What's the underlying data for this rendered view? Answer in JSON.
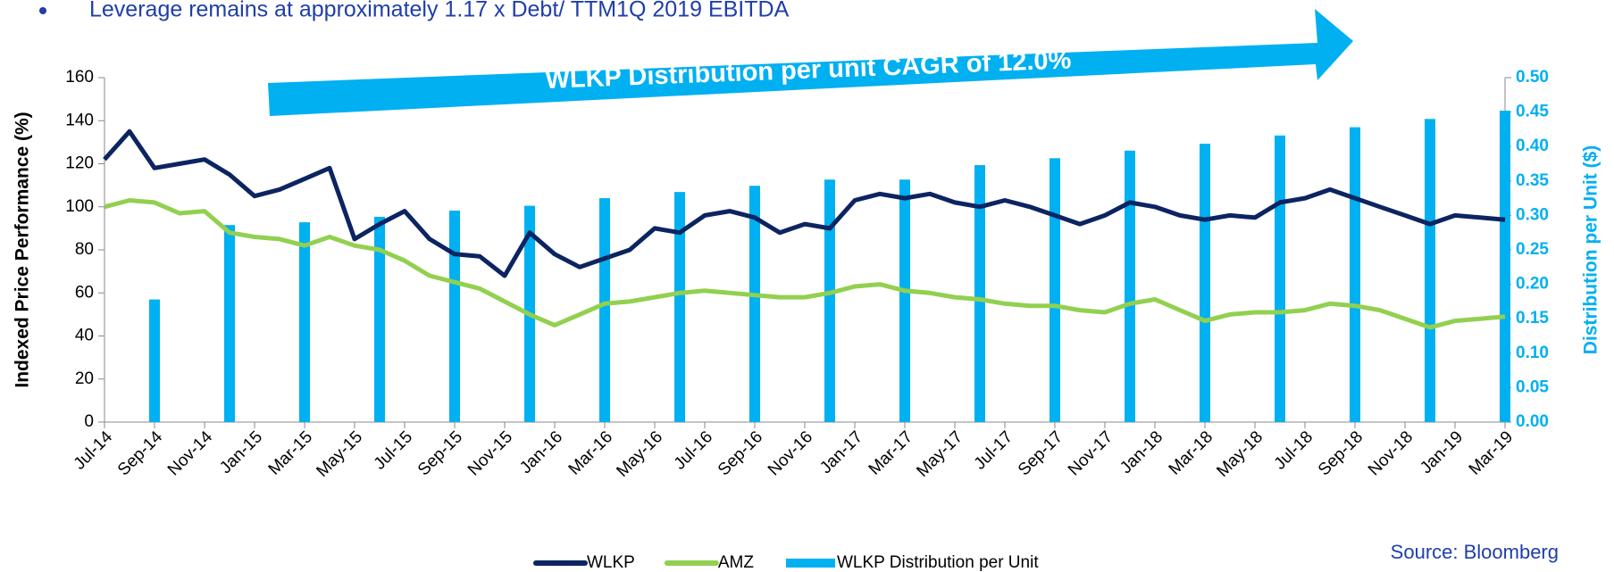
{
  "bullet": "Leverage remains at approximately 1.17 x Debt/  TTM1Q 2019 EBITDA",
  "source": "Source:  Bloomberg",
  "chart_data": {
    "type": "line-bar",
    "annotation": "WLKP Distribution per unit CAGR of 12.0%",
    "y_label": "Indexed Price Performance (%)",
    "y2_label": "Distribution per Unit ($)",
    "categories": [
      "Jul-14",
      null,
      "Sep-14",
      null,
      "Nov-14",
      null,
      "Jan-15",
      null,
      "Mar-15",
      null,
      "May-15",
      null,
      "Jul-15",
      null,
      "Sep-15",
      null,
      "Nov-15",
      null,
      "Jan-16",
      null,
      "Mar-16",
      null,
      "May-16",
      null,
      "Jul-16",
      null,
      "Sep-16",
      null,
      "Nov-16",
      null,
      "Jan-17",
      null,
      "Mar-17",
      null,
      "May-17",
      null,
      "Jul-17",
      null,
      "Sep-17",
      null,
      "Nov-17",
      null,
      "Jan-18",
      null,
      "Mar-18",
      null,
      "May-18",
      null,
      "Jul-18",
      null,
      "Sep-18",
      null,
      "Nov-18",
      null,
      "Jan-19",
      null,
      "Mar-19"
    ],
    "series": [
      {
        "name": "WLKP",
        "color": "#0c2461",
        "kind": "line",
        "values": [
          122,
          135,
          118,
          120,
          122,
          115,
          105,
          108,
          113,
          118,
          85,
          92,
          98,
          85,
          78,
          77,
          68,
          88,
          78,
          72,
          76,
          80,
          90,
          88,
          96,
          98,
          95,
          88,
          92,
          90,
          103,
          106,
          104,
          106,
          102,
          100,
          103,
          100,
          96,
          92,
          96,
          102,
          100,
          96,
          94,
          96,
          95,
          102,
          104,
          108,
          104,
          100,
          96,
          92,
          96,
          95,
          94
        ]
      },
      {
        "name": "AMZ",
        "color": "#92d050",
        "kind": "line",
        "values": [
          100,
          103,
          102,
          97,
          98,
          88,
          86,
          85,
          82,
          86,
          82,
          80,
          75,
          68,
          65,
          62,
          56,
          50,
          45,
          50,
          55,
          56,
          58,
          60,
          61,
          60,
          59,
          58,
          58,
          60,
          63,
          64,
          61,
          60,
          58,
          57,
          55,
          54,
          54,
          52,
          51,
          55,
          57,
          52,
          47,
          50,
          51,
          51,
          52,
          55,
          54,
          52,
          48,
          44,
          47,
          48,
          49
        ]
      },
      {
        "name": "WLKP Distribution per Unit",
        "color": "#00b0f0",
        "kind": "bar",
        "axis": "y2",
        "values": [
          null,
          null,
          0.178,
          null,
          null,
          0.286,
          null,
          null,
          0.29,
          null,
          null,
          0.298,
          null,
          null,
          0.307,
          null,
          null,
          0.314,
          null,
          null,
          0.325,
          null,
          null,
          0.334,
          null,
          null,
          0.343,
          null,
          null,
          0.352,
          null,
          null,
          0.352,
          null,
          null,
          0.373,
          null,
          null,
          0.383,
          null,
          null,
          0.394,
          null,
          null,
          0.404,
          null,
          null,
          0.416,
          null,
          null,
          0.428,
          null,
          null,
          0.44,
          null,
          null,
          0.452
        ]
      }
    ],
    "ylim": [
      0,
      160
    ],
    "yticks": [
      0,
      20,
      40,
      60,
      80,
      100,
      120,
      140,
      160
    ],
    "y2lim": [
      0,
      0.5
    ],
    "y2ticks": [
      {
        "value": 0,
        "label": "0.00"
      },
      {
        "value": 0.05,
        "label": "0.05"
      },
      {
        "value": 0.1,
        "label": "0.10"
      },
      {
        "value": 0.15,
        "label": "0.15"
      },
      {
        "value": 0.2,
        "label": "0.20"
      },
      {
        "value": 0.25,
        "label": "0.25"
      },
      {
        "value": 0.3,
        "label": "0.30"
      },
      {
        "value": 0.35,
        "label": "0.35"
      },
      {
        "value": 0.4,
        "label": "0.40"
      },
      {
        "value": 0.45,
        "label": "0.45"
      },
      {
        "value": 0.5,
        "label": "0.50"
      }
    ]
  }
}
